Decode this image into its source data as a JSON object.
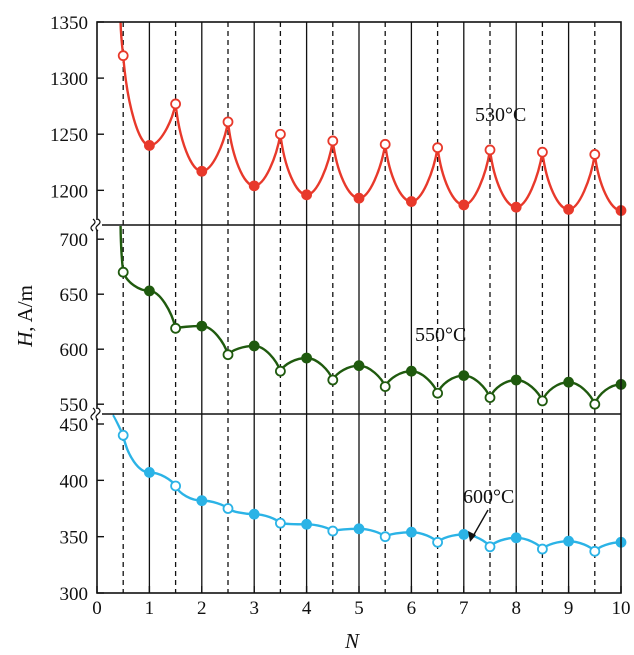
{
  "chart_data": {
    "type": "line",
    "xlabel_italic": "H",
    "ylabel_unit": ", A/m",
    "xlabel": "N",
    "x_ticks": [
      "0",
      "1",
      "2",
      "3",
      "4",
      "5",
      "6",
      "7",
      "8",
      "9",
      "10"
    ],
    "xlim": [
      0,
      10
    ],
    "panels": [
      {
        "name": "530°C",
        "color": "#e8392b",
        "ylim": [
          1170,
          1350
        ],
        "y_ticks": [
          1200,
          1250,
          1300,
          1350
        ],
        "start": {
          "x": 0.45,
          "y": 1350
        },
        "points_open": [
          [
            0.5,
            1320
          ],
          [
            1.5,
            1277
          ],
          [
            2.5,
            1261
          ],
          [
            3.5,
            1250
          ],
          [
            4.5,
            1244
          ],
          [
            5.5,
            1241
          ],
          [
            6.5,
            1238
          ],
          [
            7.5,
            1236
          ],
          [
            8.5,
            1234
          ],
          [
            9.5,
            1232
          ]
        ],
        "points_closed": [
          [
            1,
            1240
          ],
          [
            2,
            1217
          ],
          [
            3,
            1204
          ],
          [
            4,
            1196
          ],
          [
            5,
            1193
          ],
          [
            6,
            1190
          ],
          [
            7,
            1187
          ],
          [
            8,
            1185
          ],
          [
            9,
            1183
          ],
          [
            10,
            1182
          ]
        ]
      },
      {
        "name": "550°C",
        "color": "#1f5a0e",
        "ylim": [
          542,
          712
        ],
        "y_ticks": [
          550,
          600,
          650,
          700
        ],
        "start": {
          "x": 0.45,
          "y": 712
        },
        "points_open": [
          [
            0.5,
            670
          ],
          [
            1.5,
            619
          ],
          [
            2.5,
            595
          ],
          [
            3.5,
            580
          ],
          [
            4.5,
            572
          ],
          [
            5.5,
            566
          ],
          [
            6.5,
            560
          ],
          [
            7.5,
            556
          ],
          [
            8.5,
            553
          ],
          [
            9.5,
            550
          ]
        ],
        "points_closed": [
          [
            1,
            653
          ],
          [
            2,
            621
          ],
          [
            3,
            603
          ],
          [
            4,
            592
          ],
          [
            5,
            585
          ],
          [
            6,
            580
          ],
          [
            7,
            576
          ],
          [
            8,
            572
          ],
          [
            9,
            570
          ],
          [
            10,
            568
          ]
        ]
      },
      {
        "name": "600°C",
        "color": "#2bb3e6",
        "ylim": [
          300,
          458
        ],
        "y_ticks": [
          300,
          350,
          400,
          450
        ],
        "start": {
          "x": 0.3,
          "y": 458
        },
        "points_open": [
          [
            0.5,
            440
          ],
          [
            1.5,
            395
          ],
          [
            2.5,
            375
          ],
          [
            3.5,
            362
          ],
          [
            4.5,
            355
          ],
          [
            5.5,
            350
          ],
          [
            6.5,
            345
          ],
          [
            7.5,
            341
          ],
          [
            8.5,
            339
          ],
          [
            9.5,
            337
          ]
        ],
        "points_closed": [
          [
            1,
            407
          ],
          [
            2,
            382
          ],
          [
            3,
            370
          ],
          [
            4,
            361
          ],
          [
            5,
            357
          ],
          [
            6,
            354
          ],
          [
            7,
            352
          ],
          [
            8,
            349
          ],
          [
            9,
            346
          ],
          [
            10,
            345
          ]
        ]
      }
    ],
    "grid": "vertical lines at every integer (solid) and half-integer (dashed)",
    "legend": "none; series labels placed inside each panel"
  }
}
